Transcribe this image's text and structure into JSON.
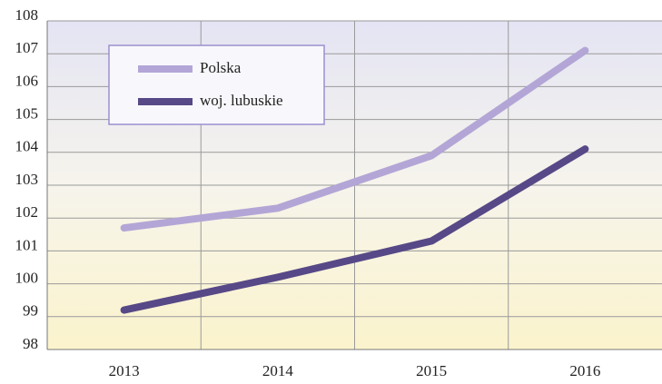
{
  "chart_data": {
    "type": "line",
    "categories": [
      "2013",
      "2014",
      "2015",
      "2016"
    ],
    "series": [
      {
        "name": "Polska",
        "color": "#b3a6d6",
        "values": [
          101.7,
          102.3,
          103.9,
          107.1
        ]
      },
      {
        "name": "woj. lubuskie",
        "color": "#574887",
        "values": [
          99.2,
          100.2,
          101.3,
          104.1
        ]
      }
    ],
    "ylim": [
      98,
      108
    ],
    "yticks": [
      98,
      99,
      100,
      101,
      102,
      103,
      104,
      105,
      106,
      107,
      108
    ],
    "grid": true,
    "legend": "upper left"
  }
}
